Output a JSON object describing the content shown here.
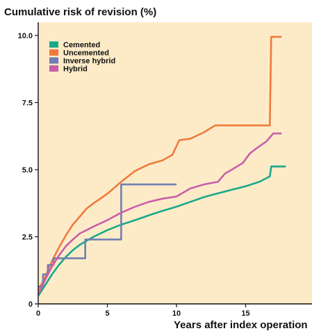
{
  "chart_data": {
    "type": "line",
    "title": "Cumulative risk of revision (%)",
    "xlabel": "Years after index operation",
    "ylabel": "",
    "xlim": [
      0,
      19.5
    ],
    "ylim": [
      0,
      10.5
    ],
    "x_ticks": [
      0,
      5,
      10,
      15
    ],
    "y_ticks": [
      0,
      2.5,
      5.0,
      7.5,
      10.0
    ],
    "x_tick_labels": [
      "0",
      "5",
      "10",
      "15"
    ],
    "y_tick_labels": [
      "0",
      "2.5",
      "5.0",
      "7.5",
      "10.0"
    ],
    "grid": false,
    "legend_position": "top-left",
    "background_color": "#fdebc8",
    "series": [
      {
        "name": "Cemented",
        "color": "#1aa88a",
        "step": false,
        "points": [
          [
            0,
            0.3
          ],
          [
            0.5,
            0.7
          ],
          [
            1,
            1.1
          ],
          [
            1.5,
            1.45
          ],
          [
            2,
            1.75
          ],
          [
            2.5,
            2.0
          ],
          [
            3,
            2.2
          ],
          [
            4,
            2.5
          ],
          [
            5,
            2.75
          ],
          [
            6,
            2.95
          ],
          [
            7,
            3.12
          ],
          [
            8,
            3.3
          ],
          [
            9,
            3.47
          ],
          [
            10,
            3.62
          ],
          [
            11,
            3.8
          ],
          [
            12,
            3.98
          ],
          [
            13,
            4.12
          ],
          [
            14,
            4.25
          ],
          [
            15,
            4.38
          ],
          [
            16,
            4.55
          ],
          [
            16.75,
            4.75
          ],
          [
            16.85,
            5.12
          ],
          [
            17.9,
            5.12
          ]
        ]
      },
      {
        "name": "Uncemented",
        "color": "#f07a3c",
        "step": false,
        "points": [
          [
            0,
            0.5
          ],
          [
            0.5,
            1.0
          ],
          [
            1,
            1.6
          ],
          [
            1.5,
            2.1
          ],
          [
            2,
            2.55
          ],
          [
            2.5,
            2.95
          ],
          [
            3,
            3.25
          ],
          [
            3.5,
            3.55
          ],
          [
            4,
            3.75
          ],
          [
            5,
            4.1
          ],
          [
            6,
            4.55
          ],
          [
            7,
            4.95
          ],
          [
            8,
            5.2
          ],
          [
            9,
            5.35
          ],
          [
            9.7,
            5.55
          ],
          [
            10.2,
            6.1
          ],
          [
            11,
            6.15
          ],
          [
            12,
            6.4
          ],
          [
            12.8,
            6.65
          ],
          [
            16.75,
            6.65
          ],
          [
            16.85,
            9.95
          ],
          [
            17.6,
            9.95
          ]
        ]
      },
      {
        "name": "Inverse hybrid",
        "color": "#6f7fb5",
        "step": true,
        "points": [
          [
            0,
            0.65
          ],
          [
            0.35,
            1.1
          ],
          [
            0.7,
            1.45
          ],
          [
            1.1,
            1.7
          ],
          [
            3.4,
            2.4
          ],
          [
            6.0,
            4.45
          ],
          [
            10.0,
            4.45
          ]
        ]
      },
      {
        "name": "Hybrid",
        "color": "#c95ea8",
        "step": false,
        "points": [
          [
            0,
            0.35
          ],
          [
            0.5,
            0.9
          ],
          [
            1,
            1.4
          ],
          [
            1.5,
            1.8
          ],
          [
            2,
            2.15
          ],
          [
            2.5,
            2.4
          ],
          [
            3,
            2.62
          ],
          [
            4,
            2.88
          ],
          [
            5,
            3.12
          ],
          [
            6,
            3.4
          ],
          [
            7,
            3.62
          ],
          [
            8,
            3.8
          ],
          [
            9,
            3.92
          ],
          [
            10,
            4.0
          ],
          [
            11,
            4.3
          ],
          [
            12,
            4.45
          ],
          [
            13,
            4.55
          ],
          [
            13.5,
            4.85
          ],
          [
            14,
            5.0
          ],
          [
            14.8,
            5.25
          ],
          [
            15.3,
            5.6
          ],
          [
            15.8,
            5.8
          ],
          [
            16.5,
            6.05
          ],
          [
            17,
            6.35
          ],
          [
            17.6,
            6.35
          ]
        ]
      }
    ]
  }
}
